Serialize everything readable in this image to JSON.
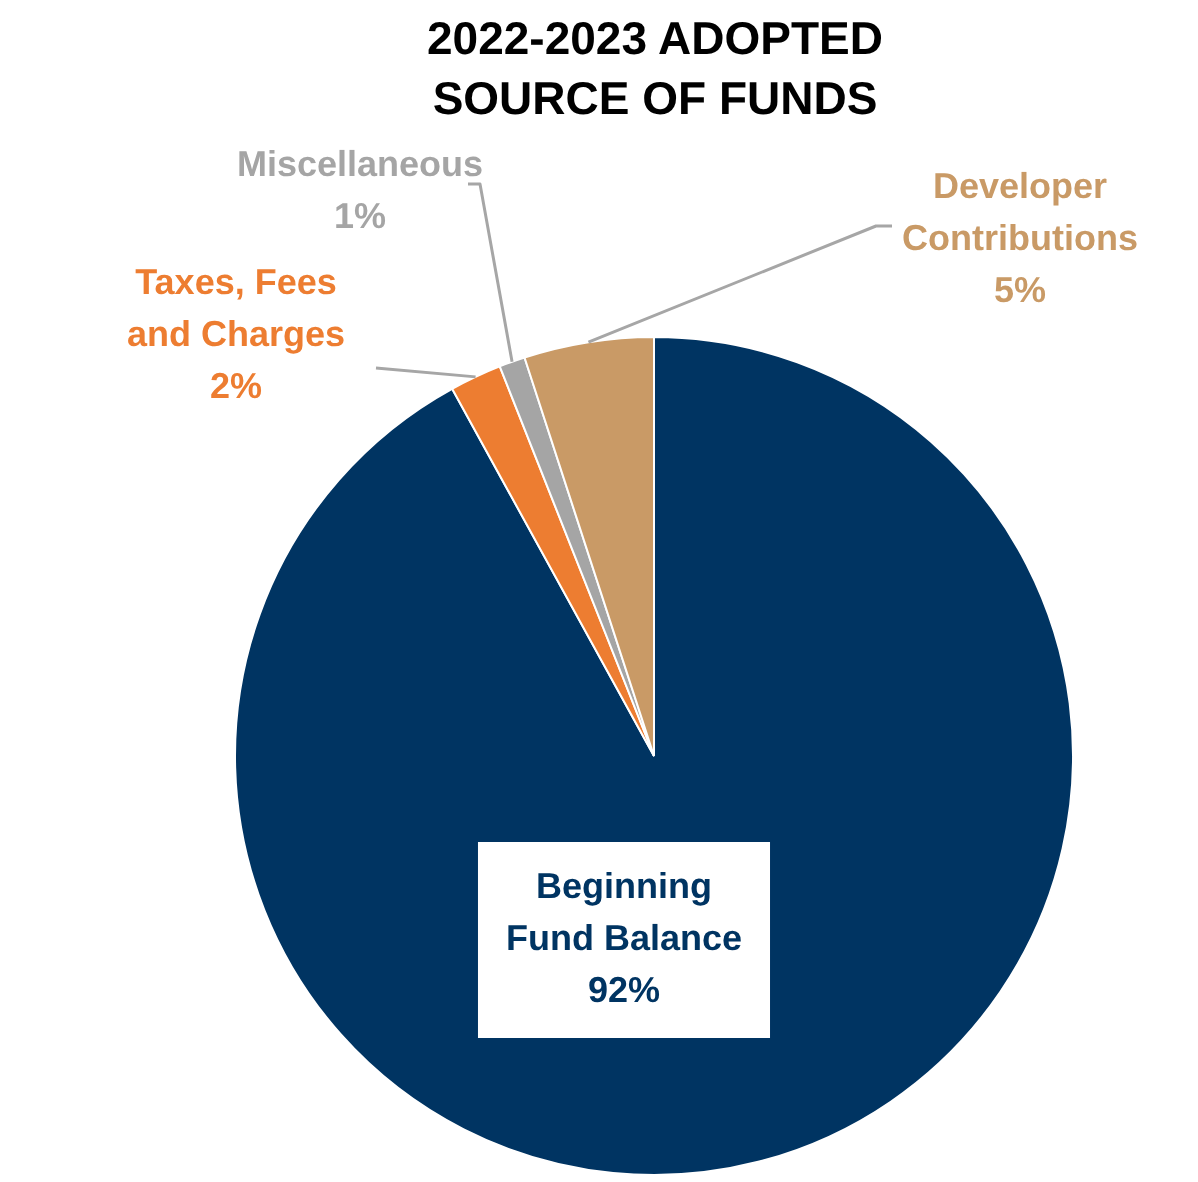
{
  "chart_data": {
    "type": "pie",
    "title": "2022-2023 ADOPTED SOURCE OF FUNDS",
    "categories": [
      "Beginning Fund Balance",
      "Taxes, Fees and Charges",
      "Miscellaneous",
      "Developer Contributions"
    ],
    "values": [
      92,
      2,
      1,
      5
    ],
    "colors": [
      "#003462",
      "#ed7d31",
      "#a5a5a5",
      "#c99a66"
    ],
    "value_labels": [
      "92%",
      "2%",
      "1%",
      "5%"
    ],
    "legend": false
  }
}
